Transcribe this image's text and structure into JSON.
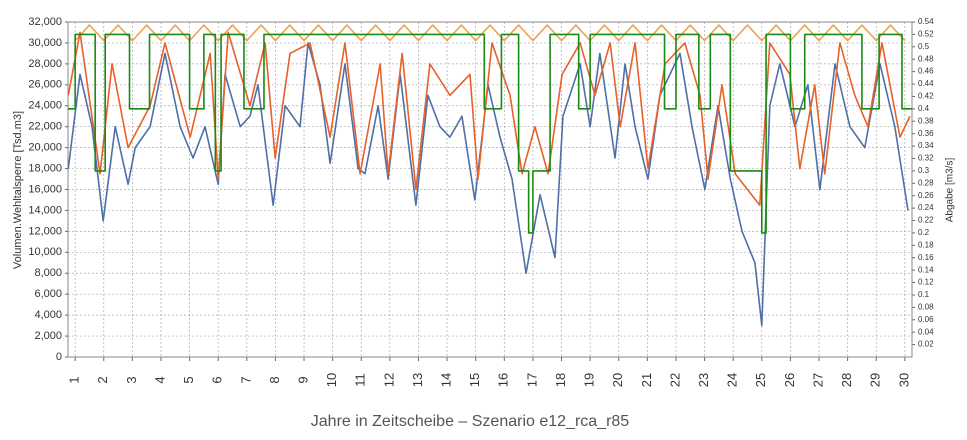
{
  "chart_data": {
    "type": "line",
    "xlabel": "Jahre in Zeitscheibe – Szenario e12_rca_r85",
    "ylabel": "Volumen.Wehltalsperre [Tsd.m3]",
    "y2label": "Abgabe [m3/s]",
    "xlim": [
      0.75,
      30.25
    ],
    "xticks": [
      1,
      2,
      3,
      4,
      5,
      6,
      7,
      8,
      9,
      10,
      11,
      12,
      13,
      14,
      15,
      16,
      17,
      18,
      19,
      20,
      21,
      22,
      23,
      24,
      25,
      26,
      27,
      28,
      29,
      30
    ],
    "ylim": [
      0,
      32000
    ],
    "yticks": [
      0,
      {
        "value": 2000,
        "label": "2,000"
      },
      {
        "value": 4000,
        "label": "4,000"
      },
      {
        "value": 6000,
        "label": "6,000"
      },
      {
        "value": 8000,
        "label": "8,000"
      },
      {
        "value": 10000,
        "label": "10,000"
      },
      {
        "value": 12000,
        "label": "12,000"
      },
      {
        "value": 14000,
        "label": "14,000"
      },
      {
        "value": 16000,
        "label": "16,000"
      },
      {
        "value": 18000,
        "label": "18,000"
      },
      {
        "value": 20000,
        "label": "20,000"
      },
      {
        "value": 22000,
        "label": "22,000"
      },
      {
        "value": 24000,
        "label": "24,000"
      },
      {
        "value": 26000,
        "label": "26,000"
      },
      {
        "value": 28000,
        "label": "28,000"
      },
      {
        "value": 30000,
        "label": "30,000"
      },
      {
        "value": 32000,
        "label": "32,000"
      }
    ],
    "y2lim": [
      0,
      0.54
    ],
    "y2ticks": [
      0.02,
      0.04,
      0.06,
      0.08,
      0.1,
      0.12,
      0.14,
      0.16,
      0.18,
      0.2,
      0.22,
      0.24,
      0.26,
      0.28,
      0.3,
      0.32,
      0.34,
      0.36,
      0.38,
      0.4,
      0.42,
      0.44,
      0.46,
      0.48,
      0.5,
      0.52,
      0.54
    ],
    "grid": true,
    "series": [
      {
        "color": "#f0a050",
        "axis": "y2",
        "x": [
          1,
          1.5,
          2,
          2.5,
          3,
          3.5,
          4,
          4.5,
          5,
          5.5,
          6,
          6.5,
          7,
          7.5,
          8,
          8.5,
          9,
          9.5,
          10,
          10.5,
          11,
          11.5,
          12,
          12.5,
          13,
          13.5,
          14,
          14.5,
          15,
          15.5,
          16,
          16.5,
          17,
          17.5,
          18,
          18.5,
          19,
          19.5,
          20,
          20.5,
          21,
          21.5,
          22,
          22.5,
          23,
          23.5,
          24,
          24.5,
          25,
          25.5,
          26,
          26.5,
          27,
          27.5,
          28,
          28.5,
          29,
          29.5,
          30
        ],
        "values": [
          0.51,
          0.535,
          0.51,
          0.535,
          0.51,
          0.535,
          0.51,
          0.535,
          0.51,
          0.535,
          0.51,
          0.535,
          0.51,
          0.535,
          0.51,
          0.535,
          0.51,
          0.535,
          0.51,
          0.535,
          0.51,
          0.535,
          0.51,
          0.535,
          0.51,
          0.535,
          0.51,
          0.535,
          0.51,
          0.535,
          0.51,
          0.535,
          0.51,
          0.535,
          0.51,
          0.535,
          0.51,
          0.535,
          0.51,
          0.535,
          0.51,
          0.535,
          0.51,
          0.535,
          0.51,
          0.535,
          0.51,
          0.535,
          0.51,
          0.535,
          0.51,
          0.535,
          0.51,
          0.535,
          0.51,
          0.535,
          0.51,
          0.535,
          0.51
        ]
      },
      {
        "color": "#4f6fa8",
        "x": [
          0.76,
          1.17,
          1.59,
          1.98,
          2.4,
          2.85,
          3.1,
          3.62,
          4.14,
          4.67,
          5.12,
          5.54,
          6.0,
          6.24,
          6.77,
          7.11,
          7.39,
          7.92,
          8.34,
          8.86,
          9.14,
          9.56,
          9.91,
          10.43,
          10.89,
          11.13,
          11.59,
          11.94,
          12.36,
          12.91,
          13.33,
          13.75,
          14.1,
          14.52,
          14.97,
          15.43,
          15.85,
          16.27,
          16.76,
          17.25,
          17.77,
          18.05,
          18.65,
          19.0,
          19.34,
          19.87,
          20.22,
          20.57,
          21.02,
          21.44,
          22.14,
          22.56,
          23.01,
          23.47,
          23.9,
          24.31,
          24.76,
          25.0,
          25.28,
          25.63,
          26.16,
          26.61,
          27.03,
          27.56,
          28.08,
          28.6,
          29.13,
          29.65,
          30.11
        ],
        "values": [
          18000,
          27000,
          22000,
          13000,
          22000,
          16500,
          20000,
          22000,
          29000,
          22000,
          19000,
          22000,
          16500,
          27000,
          22000,
          23000,
          26000,
          14500,
          24000,
          22000,
          30000,
          26000,
          18500,
          28000,
          18000,
          17500,
          24000,
          17000,
          27000,
          14500,
          25000,
          22000,
          21000,
          23000,
          15000,
          26000,
          21000,
          17000,
          8000,
          15500,
          9500,
          23000,
          28000,
          22000,
          29000,
          19000,
          28000,
          22000,
          17000,
          25000,
          29000,
          22000,
          16000,
          24000,
          17000,
          12000,
          9000,
          3000,
          24000,
          28000,
          22000,
          26000,
          16000,
          28000,
          22000,
          20000,
          28000,
          22000,
          14000
        ]
      },
      {
        "color": "#e8602a",
        "x": [
          0.76,
          1.17,
          1.87,
          2.29,
          2.85,
          3.62,
          4.14,
          5.02,
          5.72,
          6.0,
          6.35,
          7.11,
          7.64,
          7.99,
          8.51,
          9.21,
          9.91,
          10.43,
          10.96,
          11.66,
          11.94,
          12.43,
          12.91,
          13.4,
          14.1,
          14.8,
          15.08,
          15.57,
          16.2,
          16.62,
          17.07,
          17.53,
          18.02,
          18.65,
          19.17,
          19.7,
          20.05,
          20.57,
          21.02,
          21.62,
          22.31,
          22.84,
          23.12,
          23.61,
          24.07,
          24.93,
          25.28,
          25.98,
          26.33,
          26.85,
          27.2,
          27.73,
          28.25,
          28.71,
          29.2,
          29.83,
          30.18
        ],
        "values": [
          25000,
          31000,
          17500,
          28000,
          20000,
          24000,
          30000,
          21000,
          29000,
          17000,
          31000,
          24000,
          30000,
          19000,
          29000,
          30000,
          21000,
          30000,
          17500,
          28000,
          17500,
          29000,
          16000,
          28000,
          25000,
          27000,
          17000,
          30000,
          25000,
          17500,
          22000,
          17500,
          27000,
          30000,
          25000,
          30000,
          22000,
          30000,
          18000,
          28000,
          30000,
          25000,
          17000,
          26000,
          17500,
          14500,
          30000,
          27000,
          18000,
          26000,
          17500,
          30000,
          25000,
          22000,
          30000,
          21000,
          23000
        ]
      },
      {
        "color": "#1a8a12",
        "axis": "y2",
        "step": "post",
        "x": [
          0.75,
          1.0,
          1.7,
          2.05,
          2.9,
          3.6,
          4.0,
          5.0,
          5.5,
          5.9,
          6.1,
          6.9,
          7.6,
          8.0,
          15.3,
          15.9,
          16.5,
          16.85,
          17.0,
          17.6,
          18.6,
          19.0,
          21.6,
          22.0,
          22.8,
          23.2,
          23.9,
          25.0,
          25.15,
          26.0,
          26.5,
          28.5,
          29.1,
          29.9,
          30.25
        ],
        "values": [
          0.4,
          0.52,
          0.3,
          0.52,
          0.4,
          0.52,
          0.52,
          0.4,
          0.52,
          0.3,
          0.52,
          0.4,
          0.52,
          0.52,
          0.4,
          0.52,
          0.3,
          0.2,
          0.3,
          0.52,
          0.4,
          0.52,
          0.4,
          0.52,
          0.4,
          0.52,
          0.3,
          0.2,
          0.52,
          0.4,
          0.52,
          0.4,
          0.52,
          0.4,
          0.4
        ]
      }
    ]
  }
}
